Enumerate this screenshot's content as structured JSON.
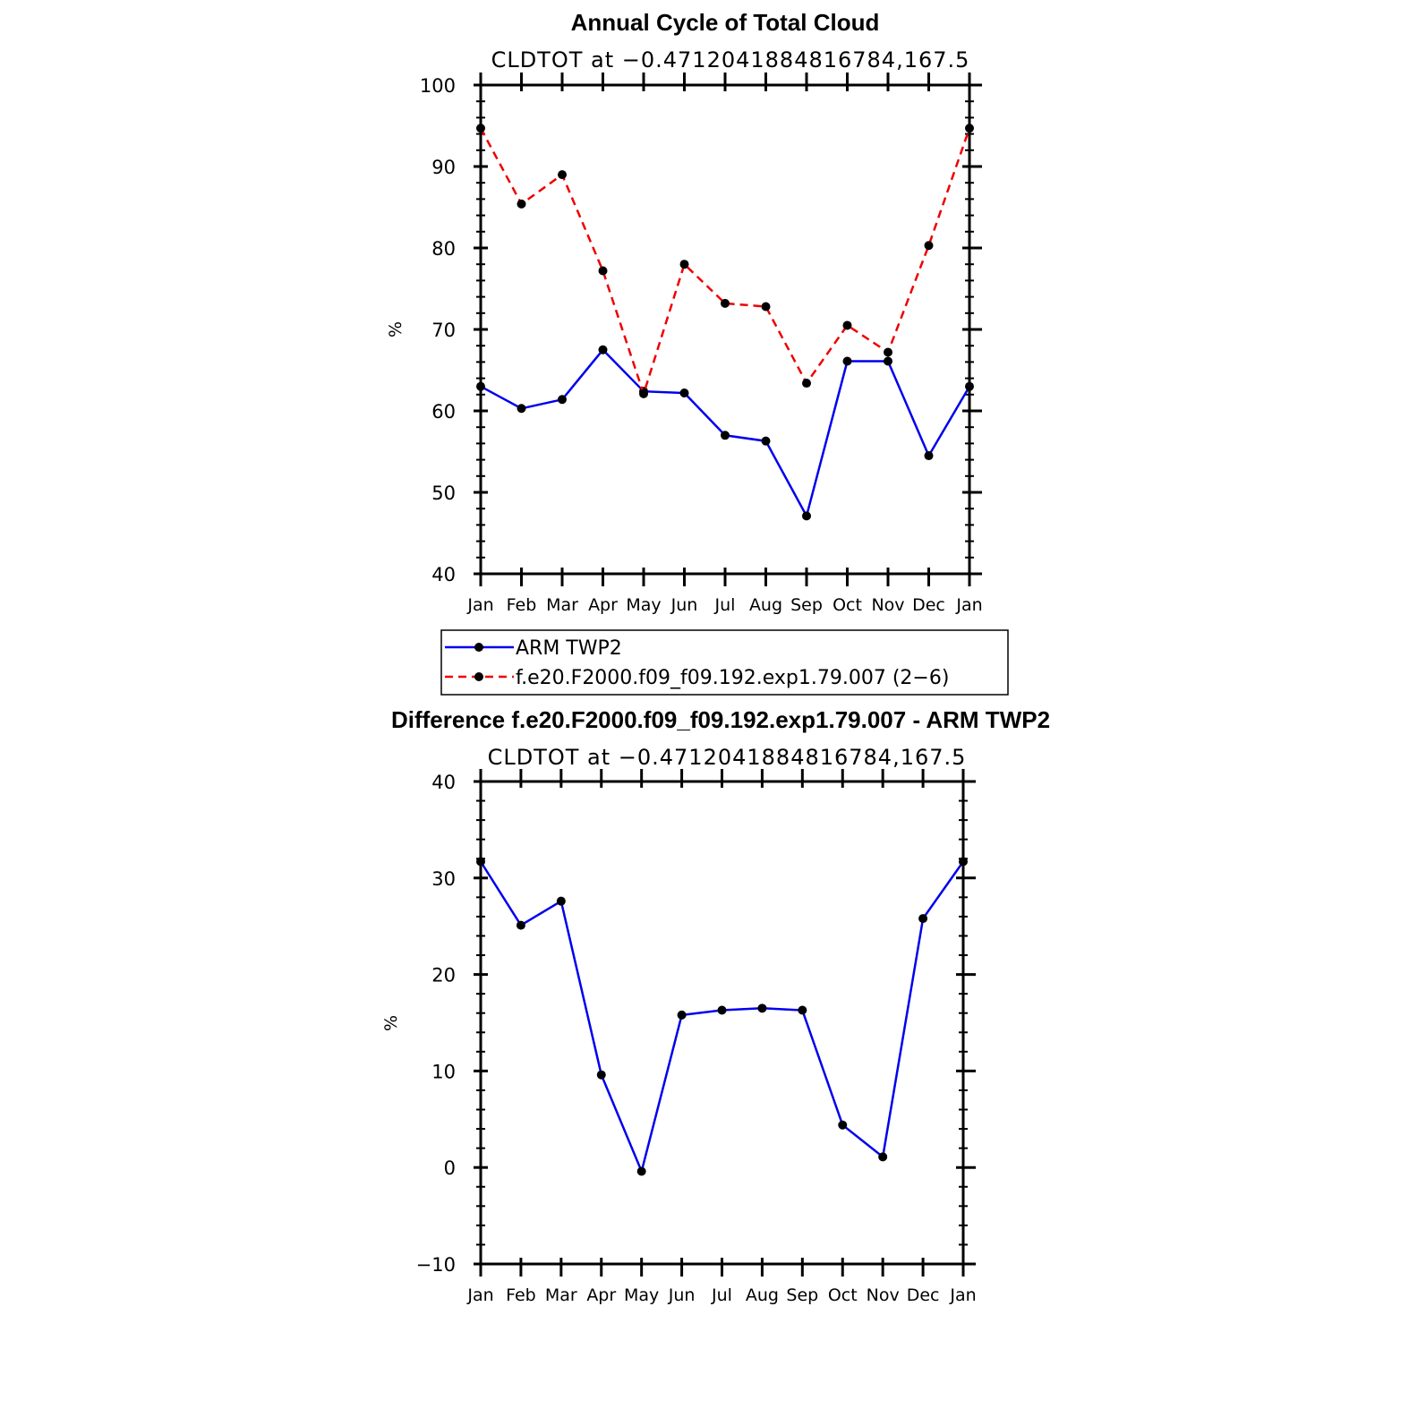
{
  "chart_data": [
    {
      "type": "line",
      "title": "Annual Cycle of Total Cloud",
      "subtitle": "CLDTOT at −0.4712041884816784,167.5",
      "xlabel": "",
      "ylabel": "%",
      "categories": [
        "Jan",
        "Feb",
        "Mar",
        "Apr",
        "May",
        "Jun",
        "Jul",
        "Aug",
        "Sep",
        "Oct",
        "Nov",
        "Dec",
        "Jan"
      ],
      "ylim": [
        40,
        100
      ],
      "yticks": [
        "40",
        "50",
        "60",
        "70",
        "80",
        "90",
        "100"
      ],
      "grid": false,
      "series": [
        {
          "name": "ARM TWP2",
          "color": "#0000ee",
          "dash": "solid",
          "values": [
            63,
            60.3,
            61.4,
            67.5,
            62.4,
            62.2,
            57,
            56.3,
            47.1,
            66.1,
            66.1,
            54.5,
            63
          ]
        },
        {
          "name": "f.e20.F2000.f09_f09.192.exp1.79.007 (2−6)",
          "color": "#ee0000",
          "dash": "dashed",
          "values": [
            94.7,
            85.4,
            89,
            77.2,
            62.1,
            78,
            73.2,
            72.8,
            63.4,
            70.5,
            67.2,
            80.3,
            94.7
          ]
        }
      ],
      "legend": {
        "position": "bottom",
        "entries": [
          "ARM TWP2",
          "f.e20.F2000.f09_f09.192.exp1.79.007 (2−6)"
        ]
      }
    },
    {
      "type": "line",
      "title": "Difference f.e20.F2000.f09_f09.192.exp1.79.007 - ARM TWP2",
      "subtitle": "CLDTOT at −0.4712041884816784,167.5",
      "xlabel": "",
      "ylabel": "%",
      "categories": [
        "Jan",
        "Feb",
        "Mar",
        "Apr",
        "May",
        "Jun",
        "Jul",
        "Aug",
        "Sep",
        "Oct",
        "Nov",
        "Dec",
        "Jan"
      ],
      "ylim": [
        -10,
        40
      ],
      "yticks": [
        "−10",
        "0",
        "10",
        "20",
        "30",
        "40"
      ],
      "grid": false,
      "series": [
        {
          "name": "Difference",
          "color": "#0000ee",
          "dash": "solid",
          "values": [
            31.7,
            25.1,
            27.6,
            9.6,
            -0.4,
            15.8,
            16.3,
            16.5,
            16.3,
            4.4,
            1.1,
            25.8,
            31.7
          ]
        }
      ]
    }
  ]
}
